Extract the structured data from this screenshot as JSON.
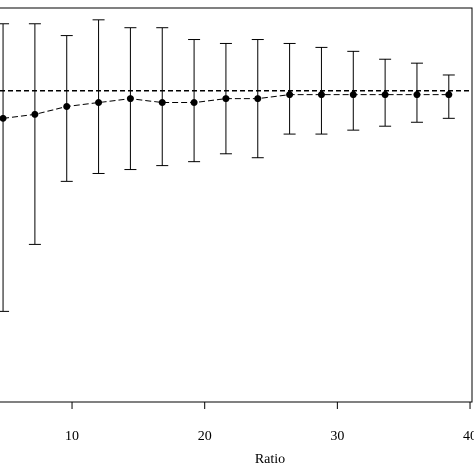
{
  "chart_data": {
    "type": "errorbar",
    "x_label": "Ratio",
    "x": [
      4.8,
      7.2,
      9.6,
      12,
      14.4,
      16.8,
      19.2,
      21.6,
      24,
      26.4,
      28.8,
      31.2,
      33.6,
      36,
      38.4
    ],
    "values": [
      0.72,
      0.73,
      0.75,
      0.76,
      0.77,
      0.76,
      0.76,
      0.77,
      0.77,
      0.78,
      0.78,
      0.78,
      0.78,
      0.78,
      0.78
    ],
    "upper": [
      0.96,
      0.96,
      0.93,
      0.97,
      0.95,
      0.95,
      0.92,
      0.91,
      0.92,
      0.91,
      0.9,
      0.89,
      0.87,
      0.86,
      0.83
    ],
    "lower": [
      0.23,
      0.4,
      0.56,
      0.58,
      0.59,
      0.6,
      0.61,
      0.63,
      0.62,
      0.68,
      0.68,
      0.69,
      0.7,
      0.71,
      0.72
    ],
    "reference_line": 0.79,
    "color": "#000000",
    "xlim": [
      4.57,
      40.3
    ],
    "xticks": [
      10,
      20,
      30,
      40
    ],
    "ylim": [
      0,
      1
    ]
  }
}
